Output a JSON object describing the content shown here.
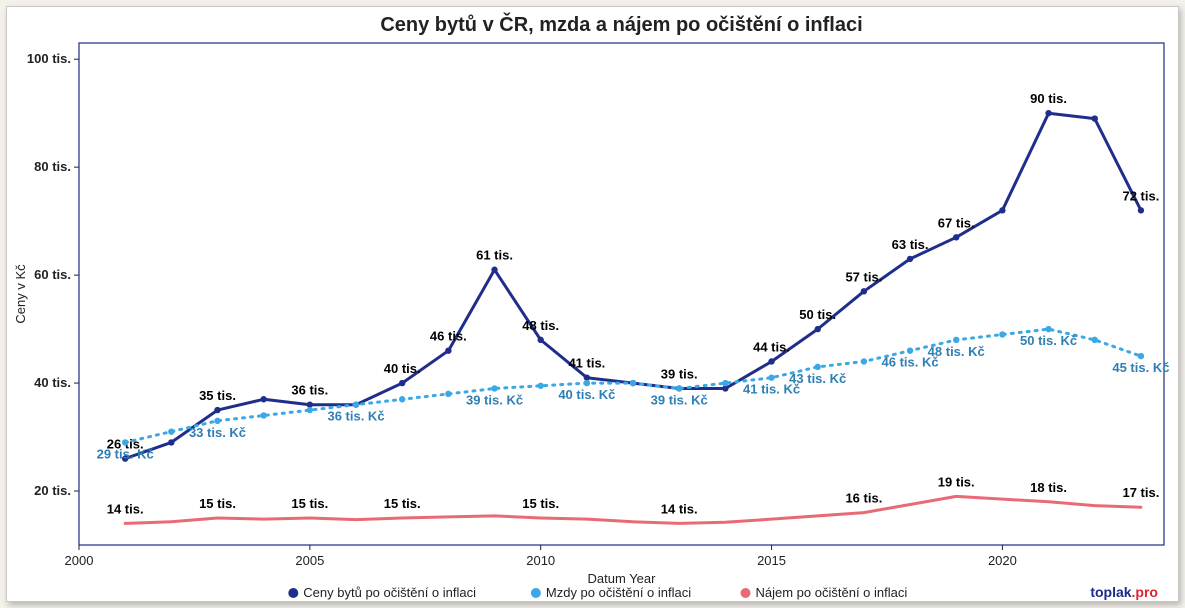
{
  "chart": {
    "type": "line",
    "title": "Ceny bytů v ČR, mzda a nájem po očištění o inflaci",
    "xlabel": "Datum Year",
    "ylabel": "Ceny v Kč",
    "xlim": [
      2000,
      2023.5
    ],
    "ylim": [
      10,
      103
    ],
    "xtick_step": 5,
    "yticks": [
      20,
      40,
      60,
      80,
      100
    ],
    "ytick_suffix": " tis.",
    "background_color": "#ffffff",
    "plot_border_color": "#1a2a8a",
    "title_fontsize": 20,
    "label_fontsize": 13,
    "tick_fontsize": 13,
    "data_label_fontsize": 13,
    "legend_position": "bottom",
    "brand": {
      "a": "toplak",
      "b": ".pro"
    },
    "series": [
      {
        "name": "Ceny bytů po očištění o inflaci",
        "color": "#1f2e8c",
        "line_width": 3,
        "line_style": "solid",
        "marker": "circle",
        "show_labels_every": 1,
        "label_suffix": " tis.",
        "label_color": "#000000",
        "points": [
          {
            "x": 2001,
            "y": 26,
            "label": "26 tis."
          },
          {
            "x": 2002,
            "y": 29
          },
          {
            "x": 2003,
            "y": 35,
            "label": "35 tis."
          },
          {
            "x": 2004,
            "y": 37
          },
          {
            "x": 2005,
            "y": 36,
            "label": "36 tis."
          },
          {
            "x": 2006,
            "y": 36
          },
          {
            "x": 2007,
            "y": 40,
            "label": "40 tis."
          },
          {
            "x": 2008,
            "y": 46,
            "label": "46 tis."
          },
          {
            "x": 2009,
            "y": 61,
            "label": "61 tis."
          },
          {
            "x": 2010,
            "y": 48,
            "label": "48 tis."
          },
          {
            "x": 2011,
            "y": 41,
            "label": "41 tis."
          },
          {
            "x": 2012,
            "y": 40
          },
          {
            "x": 2013,
            "y": 39,
            "label": "39 tis."
          },
          {
            "x": 2014,
            "y": 39
          },
          {
            "x": 2015,
            "y": 44,
            "label": "44 tis."
          },
          {
            "x": 2016,
            "y": 50,
            "label": "50 tis."
          },
          {
            "x": 2017,
            "y": 57,
            "label": "57 tis."
          },
          {
            "x": 2018,
            "y": 63,
            "label": "63 tis."
          },
          {
            "x": 2019,
            "y": 67,
            "label": "67 tis."
          },
          {
            "x": 2020,
            "y": 72
          },
          {
            "x": 2021,
            "y": 90,
            "label": "90 tis."
          },
          {
            "x": 2022,
            "y": 89
          },
          {
            "x": 2023,
            "y": 72,
            "label": "72 tis."
          }
        ]
      },
      {
        "name": "Mzdy po očištění o inflaci",
        "color": "#3aa7e6",
        "line_width": 3,
        "line_style": "dotted",
        "marker": "circle",
        "label_suffix": " tis. Kč",
        "label_color": "#2e7fb3",
        "points": [
          {
            "x": 2001,
            "y": 29,
            "label": "29 tis. Kč",
            "label_dy": 16
          },
          {
            "x": 2002,
            "y": 31
          },
          {
            "x": 2003,
            "y": 33,
            "label": "33 tis. Kč",
            "label_dy": 16
          },
          {
            "x": 2004,
            "y": 34
          },
          {
            "x": 2005,
            "y": 35
          },
          {
            "x": 2006,
            "y": 36,
            "label": "36 tis. Kč",
            "label_dy": 16
          },
          {
            "x": 2007,
            "y": 37
          },
          {
            "x": 2008,
            "y": 38
          },
          {
            "x": 2009,
            "y": 39,
            "label": "39 tis. Kč",
            "label_dy": 16
          },
          {
            "x": 2010,
            "y": 39.5
          },
          {
            "x": 2011,
            "y": 40,
            "label": "40 tis. Kč",
            "label_dy": 16
          },
          {
            "x": 2012,
            "y": 40
          },
          {
            "x": 2013,
            "y": 39,
            "label": "39 tis. Kč",
            "label_dy": 16
          },
          {
            "x": 2014,
            "y": 40
          },
          {
            "x": 2015,
            "y": 41,
            "label": "41 tis. Kč",
            "label_dy": 16
          },
          {
            "x": 2016,
            "y": 43,
            "label": "43 tis. Kč",
            "label_dy": 16
          },
          {
            "x": 2017,
            "y": 44
          },
          {
            "x": 2018,
            "y": 46,
            "label": "46 tis. Kč",
            "label_dy": 16
          },
          {
            "x": 2019,
            "y": 48,
            "label": "48 tis. Kč",
            "label_dy": 16
          },
          {
            "x": 2020,
            "y": 49
          },
          {
            "x": 2021,
            "y": 50,
            "label": "50 tis. Kč",
            "label_dy": 16
          },
          {
            "x": 2022,
            "y": 48
          },
          {
            "x": 2023,
            "y": 45,
            "label": "45 tis. Kč",
            "label_dy": 16
          }
        ]
      },
      {
        "name": "Nájem po očištění o inflaci",
        "color": "#e86a75",
        "line_width": 3,
        "line_style": "solid",
        "marker": "none",
        "label_suffix": " tis.",
        "label_color": "#000000",
        "points": [
          {
            "x": 2001,
            "y": 14,
            "label": "14 tis."
          },
          {
            "x": 2002,
            "y": 14.3
          },
          {
            "x": 2003,
            "y": 15,
            "label": "15 tis."
          },
          {
            "x": 2004,
            "y": 14.8
          },
          {
            "x": 2005,
            "y": 15,
            "label": "15 tis."
          },
          {
            "x": 2006,
            "y": 14.7
          },
          {
            "x": 2007,
            "y": 15,
            "label": "15 tis."
          },
          {
            "x": 2008,
            "y": 15.2
          },
          {
            "x": 2009,
            "y": 15.4
          },
          {
            "x": 2010,
            "y": 15,
            "label": "15 tis."
          },
          {
            "x": 2011,
            "y": 14.8
          },
          {
            "x": 2012,
            "y": 14.3
          },
          {
            "x": 2013,
            "y": 14,
            "label": "14 tis."
          },
          {
            "x": 2014,
            "y": 14.2
          },
          {
            "x": 2015,
            "y": 14.8
          },
          {
            "x": 2016,
            "y": 15.4
          },
          {
            "x": 2017,
            "y": 16,
            "label": "16 tis."
          },
          {
            "x": 2018,
            "y": 17.5
          },
          {
            "x": 2019,
            "y": 19,
            "label": "19 tis."
          },
          {
            "x": 2020,
            "y": 18.5
          },
          {
            "x": 2021,
            "y": 18,
            "label": "18 tis."
          },
          {
            "x": 2022,
            "y": 17.3
          },
          {
            "x": 2023,
            "y": 17,
            "label": "17 tis."
          }
        ]
      }
    ]
  }
}
